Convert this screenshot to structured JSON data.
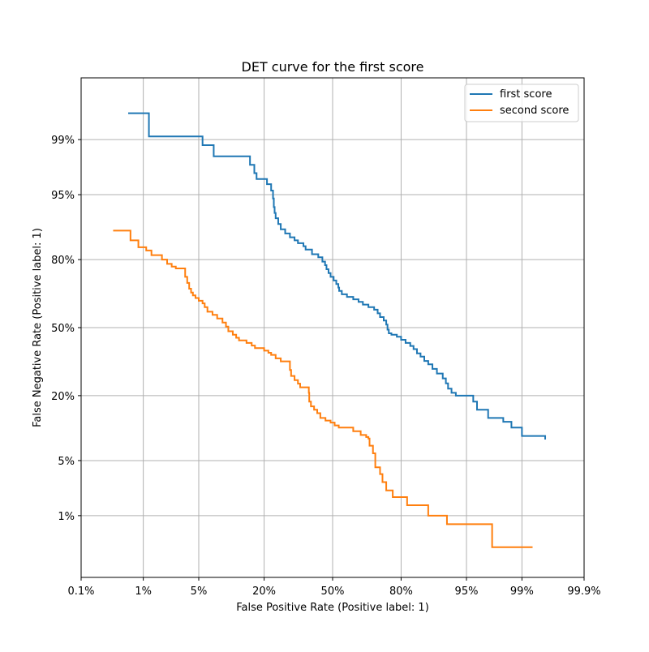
{
  "chart_data": {
    "type": "line",
    "title": "DET curve for the first score",
    "xlabel": "False Positive Rate (Positive label: 1)",
    "ylabel": "False Negative Rate (Positive label: 1)",
    "scale": "normal-deviate (probit)",
    "xlim": [
      0.001,
      0.999
    ],
    "ylim": [
      0.001,
      0.999
    ],
    "x_ticks": [
      0.001,
      0.01,
      0.05,
      0.2,
      0.5,
      0.8,
      0.95,
      0.99,
      0.999
    ],
    "x_tick_labels": [
      "0.1%",
      "1%",
      "5%",
      "20%",
      "50%",
      "80%",
      "95%",
      "99%",
      "99.9%"
    ],
    "y_ticks": [
      0.01,
      0.05,
      0.2,
      0.5,
      0.8,
      0.95,
      0.99
    ],
    "y_tick_labels": [
      "1%",
      "5%",
      "20%",
      "50%",
      "80%",
      "95%",
      "99%"
    ],
    "grid": true,
    "legend_position": "top-right",
    "colors": {
      "first_score": "#1f77b4",
      "second_score": "#ff7f0e",
      "grid": "#b0b0b0",
      "axes": "#000000"
    },
    "series": [
      {
        "name": "first score",
        "color": "#1f77b4",
        "points": [
          [
            0.006,
            0.996
          ],
          [
            0.012,
            0.996
          ],
          [
            0.012,
            0.991
          ],
          [
            0.055,
            0.991
          ],
          [
            0.055,
            0.988
          ],
          [
            0.072,
            0.988
          ],
          [
            0.072,
            0.983
          ],
          [
            0.155,
            0.983
          ],
          [
            0.155,
            0.978
          ],
          [
            0.168,
            0.978
          ],
          [
            0.168,
            0.972
          ],
          [
            0.175,
            0.972
          ],
          [
            0.175,
            0.967
          ],
          [
            0.21,
            0.967
          ],
          [
            0.21,
            0.962
          ],
          [
            0.225,
            0.962
          ],
          [
            0.225,
            0.955
          ],
          [
            0.232,
            0.955
          ],
          [
            0.232,
            0.945
          ],
          [
            0.235,
            0.945
          ],
          [
            0.235,
            0.932
          ],
          [
            0.238,
            0.932
          ],
          [
            0.238,
            0.922
          ],
          [
            0.242,
            0.922
          ],
          [
            0.242,
            0.912
          ],
          [
            0.252,
            0.912
          ],
          [
            0.252,
            0.9
          ],
          [
            0.262,
            0.9
          ],
          [
            0.262,
            0.888
          ],
          [
            0.28,
            0.888
          ],
          [
            0.28,
            0.878
          ],
          [
            0.3,
            0.878
          ],
          [
            0.3,
            0.868
          ],
          [
            0.32,
            0.868
          ],
          [
            0.32,
            0.86
          ],
          [
            0.335,
            0.86
          ],
          [
            0.335,
            0.852
          ],
          [
            0.36,
            0.852
          ],
          [
            0.36,
            0.843
          ],
          [
            0.37,
            0.843
          ],
          [
            0.37,
            0.833
          ],
          [
            0.4,
            0.833
          ],
          [
            0.4,
            0.818
          ],
          [
            0.43,
            0.818
          ],
          [
            0.43,
            0.808
          ],
          [
            0.45,
            0.808
          ],
          [
            0.45,
            0.793
          ],
          [
            0.463,
            0.793
          ],
          [
            0.463,
            0.78
          ],
          [
            0.47,
            0.78
          ],
          [
            0.47,
            0.765
          ],
          [
            0.48,
            0.765
          ],
          [
            0.48,
            0.75
          ],
          [
            0.49,
            0.75
          ],
          [
            0.49,
            0.735
          ],
          [
            0.505,
            0.735
          ],
          [
            0.505,
            0.72
          ],
          [
            0.518,
            0.72
          ],
          [
            0.518,
            0.705
          ],
          [
            0.528,
            0.705
          ],
          [
            0.528,
            0.69
          ],
          [
            0.532,
            0.69
          ],
          [
            0.532,
            0.675
          ],
          [
            0.545,
            0.675
          ],
          [
            0.545,
            0.66
          ],
          [
            0.57,
            0.66
          ],
          [
            0.57,
            0.648
          ],
          [
            0.6,
            0.648
          ],
          [
            0.6,
            0.637
          ],
          [
            0.625,
            0.637
          ],
          [
            0.625,
            0.625
          ],
          [
            0.645,
            0.625
          ],
          [
            0.645,
            0.612
          ],
          [
            0.67,
            0.612
          ],
          [
            0.67,
            0.6
          ],
          [
            0.695,
            0.6
          ],
          [
            0.695,
            0.588
          ],
          [
            0.71,
            0.588
          ],
          [
            0.71,
            0.57
          ],
          [
            0.72,
            0.57
          ],
          [
            0.72,
            0.552
          ],
          [
            0.735,
            0.552
          ],
          [
            0.735,
            0.535
          ],
          [
            0.745,
            0.535
          ],
          [
            0.745,
            0.515
          ],
          [
            0.75,
            0.515
          ],
          [
            0.75,
            0.49
          ],
          [
            0.755,
            0.49
          ],
          [
            0.755,
            0.472
          ],
          [
            0.765,
            0.472
          ],
          [
            0.765,
            0.465
          ],
          [
            0.785,
            0.465
          ],
          [
            0.785,
            0.455
          ],
          [
            0.8,
            0.455
          ],
          [
            0.8,
            0.44
          ],
          [
            0.815,
            0.44
          ],
          [
            0.815,
            0.425
          ],
          [
            0.83,
            0.425
          ],
          [
            0.83,
            0.41
          ],
          [
            0.84,
            0.41
          ],
          [
            0.84,
            0.395
          ],
          [
            0.85,
            0.395
          ],
          [
            0.85,
            0.375
          ],
          [
            0.86,
            0.375
          ],
          [
            0.86,
            0.36
          ],
          [
            0.87,
            0.36
          ],
          [
            0.87,
            0.34
          ],
          [
            0.88,
            0.34
          ],
          [
            0.88,
            0.325
          ],
          [
            0.89,
            0.325
          ],
          [
            0.89,
            0.305
          ],
          [
            0.9,
            0.305
          ],
          [
            0.9,
            0.285
          ],
          [
            0.912,
            0.285
          ],
          [
            0.912,
            0.265
          ],
          [
            0.918,
            0.265
          ],
          [
            0.918,
            0.245
          ],
          [
            0.922,
            0.245
          ],
          [
            0.922,
            0.225
          ],
          [
            0.928,
            0.225
          ],
          [
            0.928,
            0.21
          ],
          [
            0.935,
            0.21
          ],
          [
            0.935,
            0.2
          ],
          [
            0.958,
            0.2
          ],
          [
            0.958,
            0.18
          ],
          [
            0.962,
            0.18
          ],
          [
            0.962,
            0.155
          ],
          [
            0.972,
            0.155
          ],
          [
            0.972,
            0.132
          ],
          [
            0.982,
            0.132
          ],
          [
            0.982,
            0.122
          ],
          [
            0.986,
            0.122
          ],
          [
            0.986,
            0.108
          ],
          [
            0.99,
            0.108
          ],
          [
            0.99,
            0.09
          ],
          [
            0.9955,
            0.09
          ],
          [
            0.9955,
            0.083
          ]
        ]
      },
      {
        "name": "second score",
        "color": "#ff7f0e",
        "points": [
          [
            0.0035,
            0.885
          ],
          [
            0.0065,
            0.885
          ],
          [
            0.0065,
            0.86
          ],
          [
            0.0085,
            0.86
          ],
          [
            0.0085,
            0.84
          ],
          [
            0.011,
            0.84
          ],
          [
            0.011,
            0.83
          ],
          [
            0.013,
            0.83
          ],
          [
            0.013,
            0.815
          ],
          [
            0.018,
            0.815
          ],
          [
            0.018,
            0.8
          ],
          [
            0.021,
            0.8
          ],
          [
            0.021,
            0.785
          ],
          [
            0.024,
            0.785
          ],
          [
            0.024,
            0.775
          ],
          [
            0.027,
            0.775
          ],
          [
            0.027,
            0.768
          ],
          [
            0.035,
            0.768
          ],
          [
            0.035,
            0.735
          ],
          [
            0.037,
            0.735
          ],
          [
            0.037,
            0.71
          ],
          [
            0.039,
            0.71
          ],
          [
            0.039,
            0.685
          ],
          [
            0.041,
            0.685
          ],
          [
            0.041,
            0.668
          ],
          [
            0.043,
            0.668
          ],
          [
            0.043,
            0.655
          ],
          [
            0.046,
            0.655
          ],
          [
            0.046,
            0.643
          ],
          [
            0.05,
            0.643
          ],
          [
            0.05,
            0.63
          ],
          [
            0.055,
            0.63
          ],
          [
            0.055,
            0.618
          ],
          [
            0.058,
            0.618
          ],
          [
            0.058,
            0.6
          ],
          [
            0.062,
            0.6
          ],
          [
            0.062,
            0.578
          ],
          [
            0.07,
            0.578
          ],
          [
            0.07,
            0.563
          ],
          [
            0.078,
            0.563
          ],
          [
            0.078,
            0.545
          ],
          [
            0.088,
            0.545
          ],
          [
            0.088,
            0.525
          ],
          [
            0.095,
            0.525
          ],
          [
            0.095,
            0.505
          ],
          [
            0.1,
            0.505
          ],
          [
            0.1,
            0.482
          ],
          [
            0.11,
            0.482
          ],
          [
            0.11,
            0.465
          ],
          [
            0.118,
            0.465
          ],
          [
            0.118,
            0.45
          ],
          [
            0.125,
            0.45
          ],
          [
            0.125,
            0.437
          ],
          [
            0.145,
            0.437
          ],
          [
            0.145,
            0.425
          ],
          [
            0.16,
            0.425
          ],
          [
            0.16,
            0.412
          ],
          [
            0.17,
            0.412
          ],
          [
            0.17,
            0.4
          ],
          [
            0.2,
            0.4
          ],
          [
            0.2,
            0.388
          ],
          [
            0.215,
            0.388
          ],
          [
            0.215,
            0.378
          ],
          [
            0.225,
            0.378
          ],
          [
            0.225,
            0.368
          ],
          [
            0.242,
            0.368
          ],
          [
            0.242,
            0.352
          ],
          [
            0.262,
            0.352
          ],
          [
            0.262,
            0.338
          ],
          [
            0.3,
            0.338
          ],
          [
            0.3,
            0.3
          ],
          [
            0.305,
            0.3
          ],
          [
            0.305,
            0.275
          ],
          [
            0.32,
            0.275
          ],
          [
            0.32,
            0.258
          ],
          [
            0.335,
            0.258
          ],
          [
            0.335,
            0.244
          ],
          [
            0.345,
            0.244
          ],
          [
            0.345,
            0.23
          ],
          [
            0.385,
            0.23
          ],
          [
            0.385,
            0.21
          ],
          [
            0.387,
            0.21
          ],
          [
            0.387,
            0.18
          ],
          [
            0.395,
            0.18
          ],
          [
            0.395,
            0.165
          ],
          [
            0.41,
            0.165
          ],
          [
            0.41,
            0.155
          ],
          [
            0.425,
            0.155
          ],
          [
            0.425,
            0.145
          ],
          [
            0.44,
            0.145
          ],
          [
            0.44,
            0.132
          ],
          [
            0.465,
            0.132
          ],
          [
            0.465,
            0.125
          ],
          [
            0.49,
            0.125
          ],
          [
            0.49,
            0.12
          ],
          [
            0.51,
            0.12
          ],
          [
            0.51,
            0.113
          ],
          [
            0.53,
            0.113
          ],
          [
            0.53,
            0.108
          ],
          [
            0.6,
            0.108
          ],
          [
            0.6,
            0.1
          ],
          [
            0.635,
            0.1
          ],
          [
            0.635,
            0.092
          ],
          [
            0.66,
            0.092
          ],
          [
            0.66,
            0.088
          ],
          [
            0.67,
            0.088
          ],
          [
            0.67,
            0.085
          ],
          [
            0.675,
            0.085
          ],
          [
            0.675,
            0.072
          ],
          [
            0.69,
            0.072
          ],
          [
            0.69,
            0.06
          ],
          [
            0.7,
            0.06
          ],
          [
            0.7,
            0.05
          ],
          [
            0.7,
            0.042
          ],
          [
            0.72,
            0.042
          ],
          [
            0.72,
            0.035
          ],
          [
            0.73,
            0.035
          ],
          [
            0.73,
            0.028
          ],
          [
            0.745,
            0.028
          ],
          [
            0.745,
            0.022
          ],
          [
            0.77,
            0.022
          ],
          [
            0.77,
            0.018
          ],
          [
            0.82,
            0.018
          ],
          [
            0.82,
            0.014
          ],
          [
            0.88,
            0.014
          ],
          [
            0.88,
            0.01
          ],
          [
            0.92,
            0.01
          ],
          [
            0.92,
            0.0075
          ],
          [
            0.975,
            0.0075
          ],
          [
            0.975,
            0.0033
          ],
          [
            0.993,
            0.0033
          ]
        ]
      }
    ]
  }
}
